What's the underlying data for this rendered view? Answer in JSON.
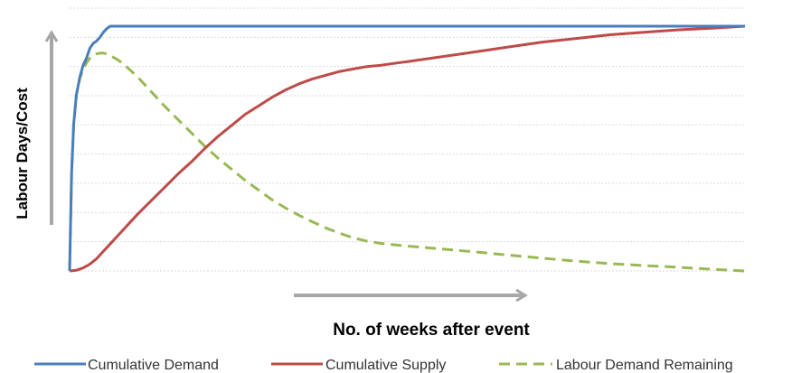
{
  "chart_data": {
    "type": "line",
    "title": "",
    "xlabel": "No. of weeks after event",
    "ylabel": "Labour Days/Cost",
    "xlim": [
      0,
      100
    ],
    "ylim": [
      0,
      100
    ],
    "grid": true,
    "gridlines": 9,
    "legend_position": "bottom",
    "axis_ticks_shown": false,
    "colors": {
      "demand": "#4a7ebb",
      "supply": "#be4b48",
      "remaining": "#98b954",
      "arrow": "#a6a6a6",
      "grid": "#d9d9d9"
    },
    "series": [
      {
        "name": "Cumulative Demand",
        "style": "solid",
        "x": [
          0,
          0.3,
          0.6,
          1,
          1.5,
          2,
          2.5,
          3,
          3.5,
          4,
          4.5,
          5,
          5.5,
          6,
          100
        ],
        "y": [
          0,
          40,
          60,
          72,
          79,
          84,
          87,
          91,
          93,
          94,
          95.5,
          97.5,
          99,
          100,
          100
        ]
      },
      {
        "name": "Cumulative Supply",
        "style": "solid",
        "x": [
          0,
          1,
          2,
          3,
          4,
          5,
          6,
          8,
          10,
          12,
          14,
          16,
          18,
          20,
          22,
          24,
          26,
          28,
          30,
          32,
          34,
          36,
          38,
          40,
          42,
          44,
          46,
          48,
          50,
          55,
          60,
          65,
          70,
          75,
          80,
          85,
          90,
          95,
          100
        ],
        "y": [
          0,
          0.3,
          1.2,
          2.8,
          5,
          8,
          11,
          17,
          23,
          28.5,
          34,
          39.5,
          44.5,
          50,
          55,
          59.5,
          64,
          67.5,
          71,
          74,
          76.5,
          78.5,
          80,
          81.5,
          82.5,
          83.5,
          84,
          84.8,
          85.5,
          87.5,
          89.5,
          91.5,
          93.5,
          95,
          96.5,
          97.5,
          98.5,
          99.2,
          100
        ]
      },
      {
        "name": "Labour Demand Remaining",
        "style": "dashed",
        "x": [
          0,
          0.3,
          0.6,
          1,
          1.5,
          2,
          2.5,
          3,
          3.5,
          4,
          4.5,
          5,
          5.5,
          6,
          7,
          8,
          10,
          12,
          14,
          16,
          18,
          20,
          22,
          24,
          26,
          28,
          30,
          32,
          34,
          36,
          38,
          40,
          42,
          44,
          46,
          48,
          50,
          55,
          60,
          65,
          70,
          75,
          80,
          85,
          90,
          95,
          100
        ],
        "y": [
          0,
          40,
          60,
          72,
          78.5,
          82.5,
          85,
          87,
          88,
          88.7,
          89,
          89,
          88.7,
          88,
          86.5,
          84.5,
          79.5,
          73.5,
          67.5,
          62,
          56.5,
          51,
          46,
          41.5,
          37,
          33,
          29,
          25.7,
          22.7,
          20,
          17.5,
          15.4,
          13.5,
          12.2,
          11.3,
          10.7,
          10.2,
          9,
          7.8,
          6.5,
          5.2,
          4,
          3,
          2.2,
          1.5,
          0.7,
          0
        ]
      }
    ]
  }
}
